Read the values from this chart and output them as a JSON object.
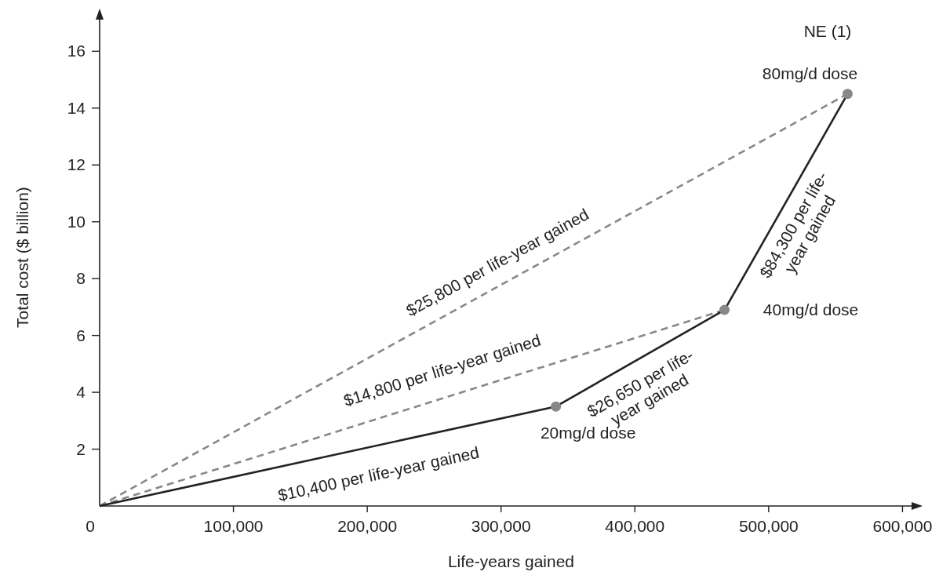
{
  "chart_data": {
    "type": "line",
    "xlabel": "Life-years gained",
    "ylabel": "Total cost ($ billion)",
    "xlim": [
      0,
      615000
    ],
    "ylim": [
      0,
      17.5
    ],
    "xticks": [
      0,
      {
        "value": 100000,
        "label": "100,000"
      },
      {
        "value": 200000,
        "label": "200,000"
      },
      {
        "value": 300000,
        "label": "300,000"
      },
      {
        "value": 400000,
        "label": "400,000"
      },
      {
        "value": 500000,
        "label": "500,000"
      },
      {
        "value": 600000,
        "label": "600,000"
      }
    ],
    "yticks": [
      2,
      4,
      6,
      8,
      10,
      12,
      14,
      16
    ],
    "grid": false,
    "series": [
      {
        "color": "#888888",
        "line_style": "dashed",
        "marker": "none",
        "x": [
          0,
          559000
        ],
        "values": [
          0,
          14.5
        ]
      },
      {
        "color": "#888888",
        "line_style": "dashed",
        "marker": "none",
        "x": [
          0,
          467000
        ],
        "values": [
          0,
          6.9
        ]
      },
      {
        "color": "#222222",
        "line_style": "solid",
        "marker": "none",
        "x": [
          0,
          341000,
          467000,
          559000
        ],
        "values": [
          0,
          3.5,
          6.9,
          14.5
        ]
      },
      {
        "type": "scatter",
        "color": "#888888",
        "marker": "circle",
        "x": [
          341000,
          467000,
          559000
        ],
        "values": [
          3.5,
          6.9,
          14.5
        ]
      }
    ],
    "annotations": [
      {
        "text": "$10,400 per life-year gained",
        "x": 204000,
        "y": 2.094
      },
      {
        "text": "$14,800 per life-year gained",
        "x": 262000,
        "y": 3.871
      },
      {
        "text": "$25,800 per life-year gained",
        "x": 305000,
        "y": 7.911
      },
      {
        "text": "$26,650 per life-\nyear gained",
        "x": 396000,
        "y": 4.984
      },
      {
        "text": "$84,300 per life-\nyear gained",
        "x": 507000,
        "y": 10.204
      },
      {
        "text": "20mg/d dose",
        "x": 341000,
        "y": 3.5
      },
      {
        "text": "40mg/d dose",
        "x": 467000,
        "y": 6.9
      },
      {
        "text": "80mg/d dose",
        "x": 559000,
        "y": 14.5
      },
      "NE (1)"
    ]
  }
}
